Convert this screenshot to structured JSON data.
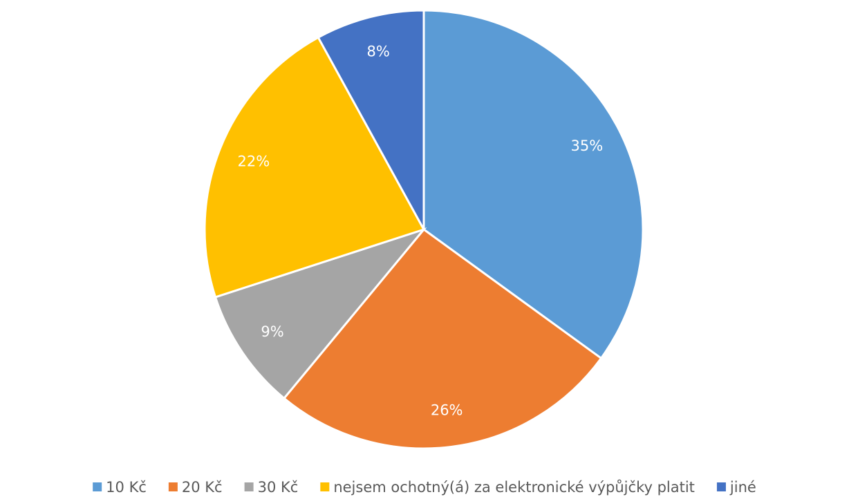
{
  "chart_data": {
    "type": "pie",
    "categories": [
      "10 Kč",
      "20 Kč",
      "30 Kč",
      "nejsem ochotný(á) za elektronické výpůjčky platit",
      "jiné"
    ],
    "values": [
      35,
      26,
      9,
      22,
      8
    ],
    "value_labels": [
      "35%",
      "26%",
      "9%",
      "22%",
      "8%"
    ],
    "colors": [
      "#5b9bd5",
      "#ed7d31",
      "#a5a5a5",
      "#ffc000",
      "#4472c4"
    ],
    "legend": "bottom"
  }
}
